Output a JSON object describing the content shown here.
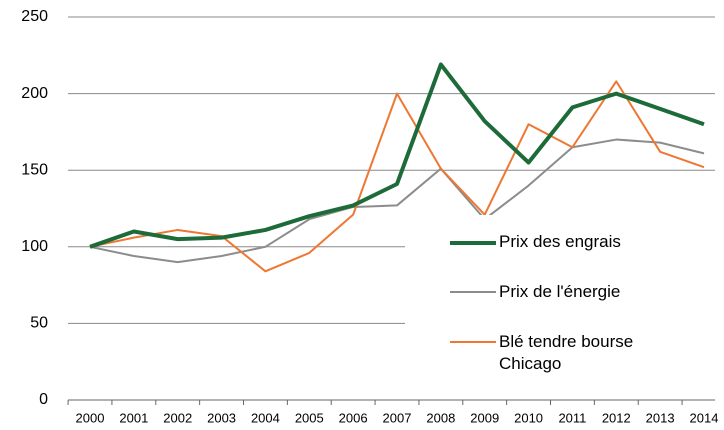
{
  "chart_data": {
    "type": "line",
    "categories": [
      "2000",
      "2001",
      "2002",
      "2003",
      "2004",
      "2005",
      "2006",
      "2007",
      "2008",
      "2009",
      "2010",
      "2011",
      "2012",
      "2013",
      "2014"
    ],
    "series": [
      {
        "name": "Prix des engrais",
        "color": "#1e6b3a",
        "width": 4,
        "values": [
          100,
          110,
          105,
          106,
          111,
          120,
          127,
          141,
          219,
          182,
          155,
          191,
          200,
          190,
          180
        ]
      },
      {
        "name": "Prix de l'énergie",
        "color": "#8c8c8c",
        "width": 2,
        "values": [
          100,
          94,
          90,
          94,
          100,
          118,
          126,
          127,
          151,
          118,
          140,
          165,
          170,
          168,
          161
        ]
      },
      {
        "name": "Blé tendre bourse Chicago",
        "color": "#ee7733",
        "width": 2,
        "values": [
          100,
          106,
          111,
          107,
          84,
          96,
          121,
          200,
          151,
          121,
          180,
          165,
          208,
          162,
          152
        ]
      }
    ],
    "ylim": [
      0,
      250
    ],
    "yticks": [
      0,
      50,
      100,
      150,
      200,
      250
    ],
    "grid": true,
    "legend": "bottom-right"
  }
}
